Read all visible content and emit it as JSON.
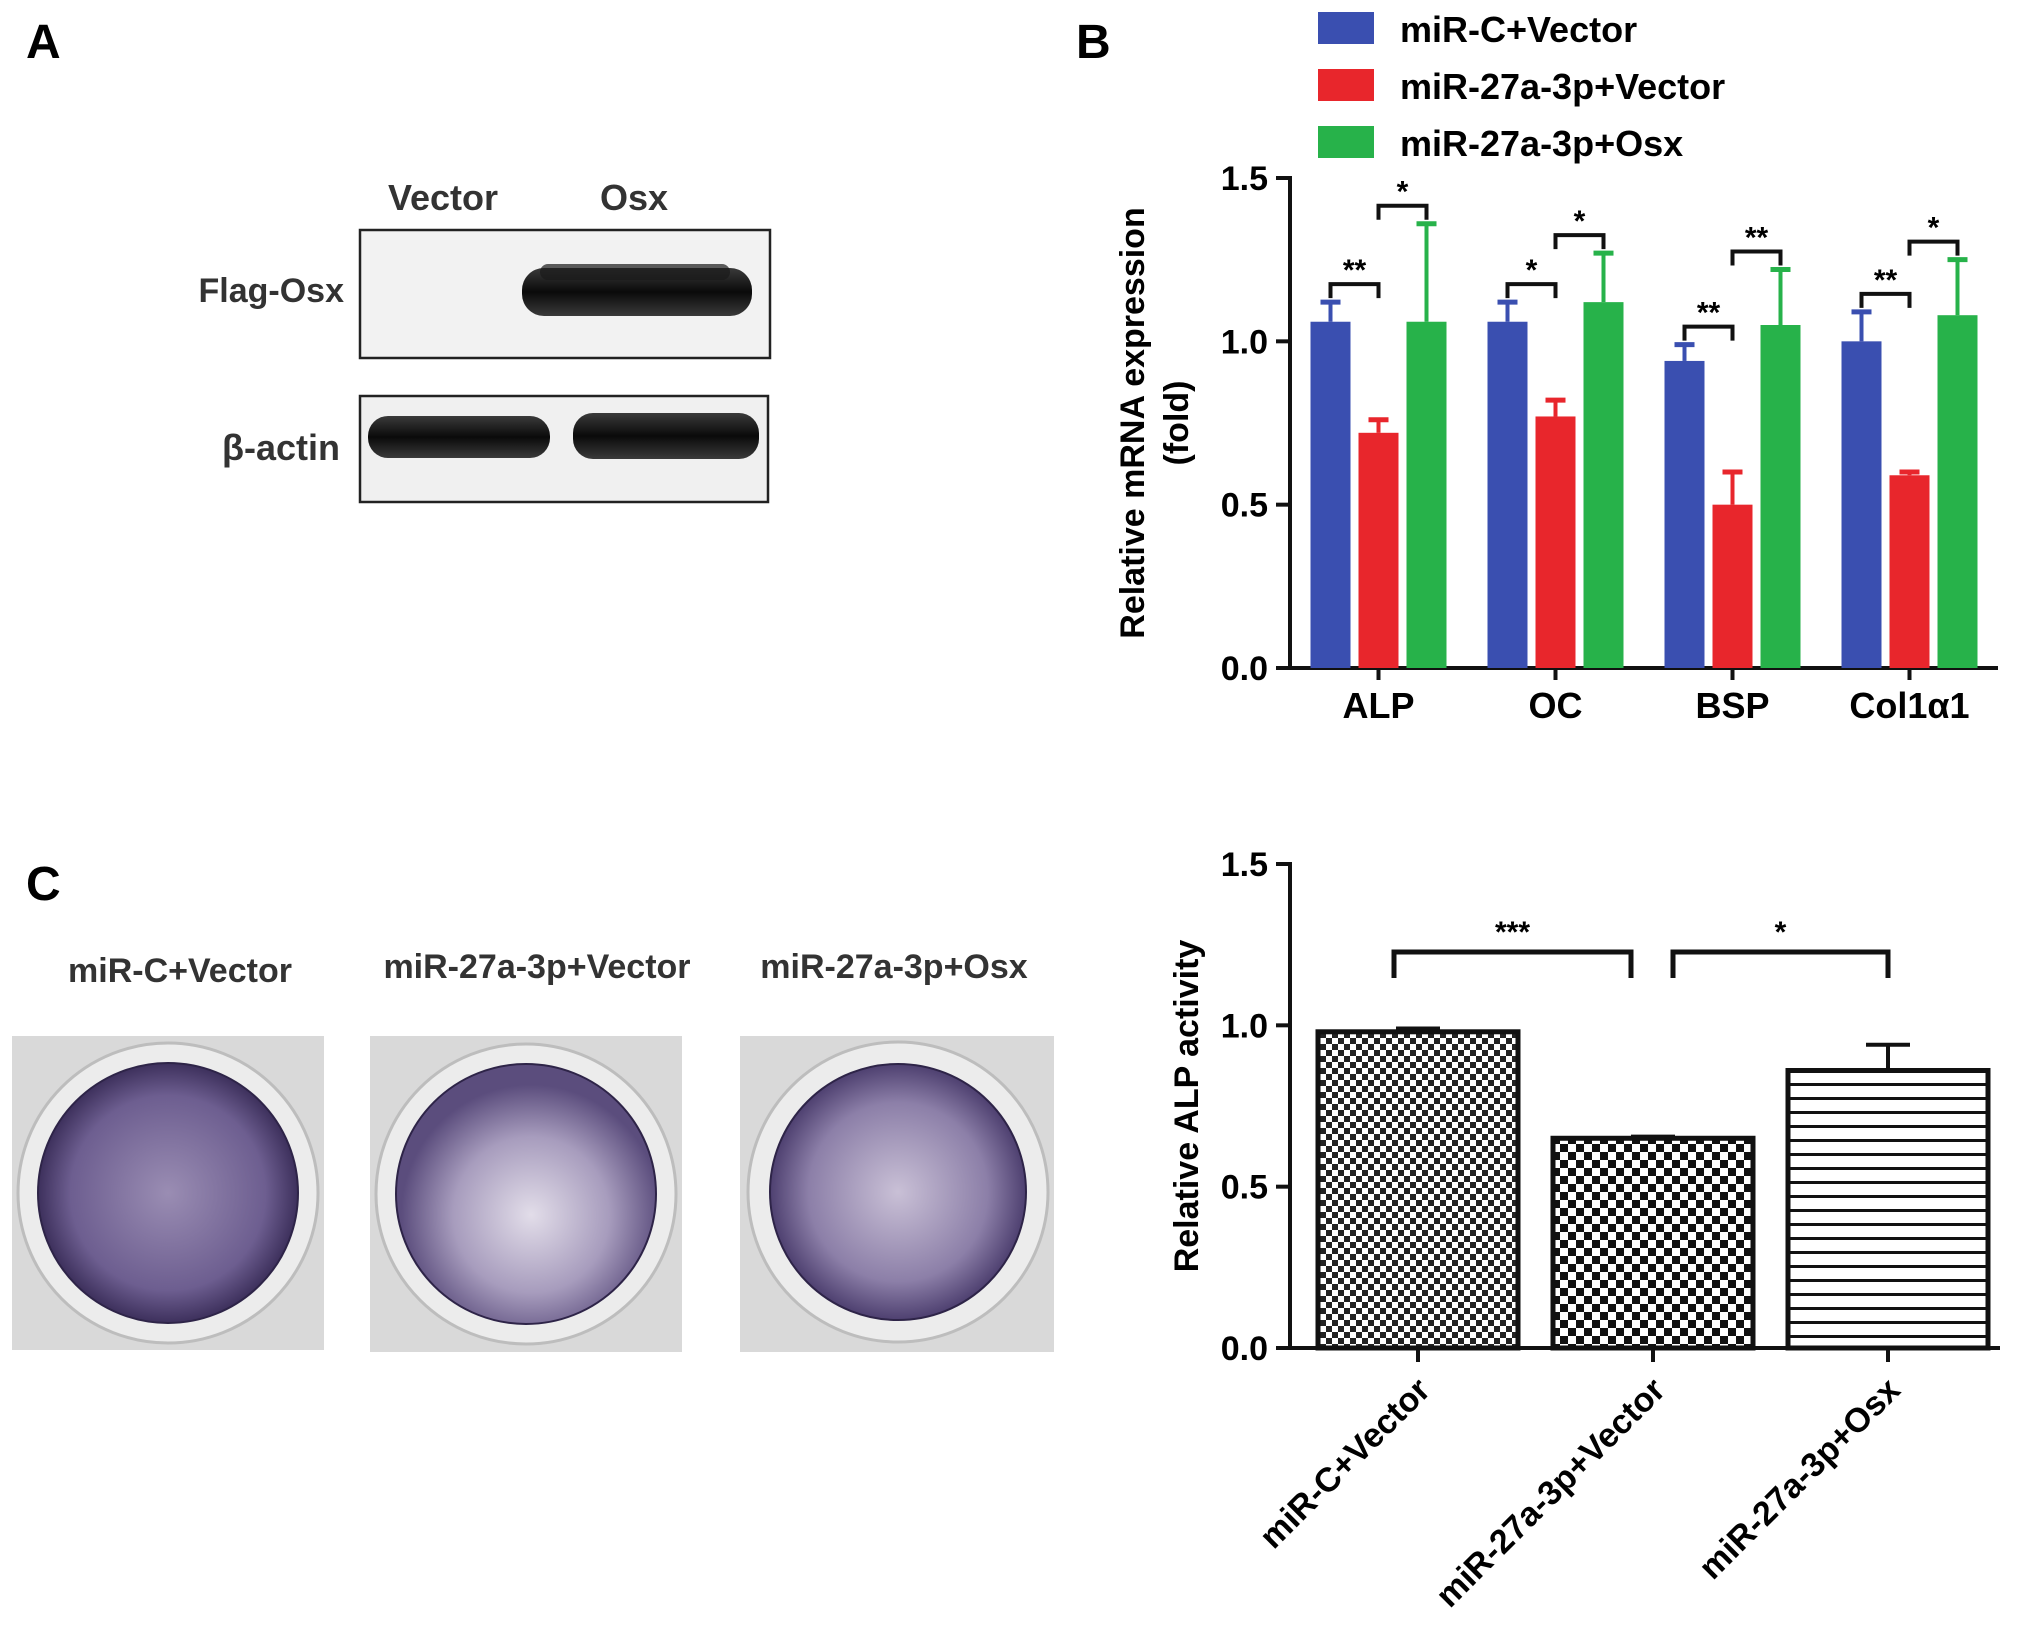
{
  "panels": {
    "a": {
      "label": "A",
      "lanes": [
        "Vector",
        "Osx"
      ],
      "rows": [
        "Flag-Osx",
        "β-actin"
      ]
    },
    "b": {
      "label": "B"
    },
    "c": {
      "label": "C",
      "wells": [
        "miR-C+Vector",
        "miR-27a-3p+Vector",
        "miR-27a-3p+Osx"
      ]
    }
  },
  "colors": {
    "blue": "#3a4fb0",
    "red": "#e8262c",
    "green": "#27b24a",
    "stain": "#6b5a8e"
  },
  "chart_data": [
    {
      "type": "bar",
      "panel": "B",
      "ylabel": "Relative mRNA expression\n(fold)",
      "xlabel": "",
      "categories": [
        "ALP",
        "OC",
        "BSP",
        "Col1α1"
      ],
      "ylim": [
        0,
        1.5
      ],
      "yticks": [
        "0.0",
        "0.5",
        "1.0",
        "1.5"
      ],
      "legend_position": "top",
      "series": [
        {
          "name": "miR-C+Vector",
          "color": "#3a4fb0",
          "values": [
            1.06,
            1.06,
            0.94,
            1.0
          ],
          "errors": [
            0.06,
            0.06,
            0.05,
            0.09
          ]
        },
        {
          "name": "miR-27a-3p+Vector",
          "color": "#e8262c",
          "values": [
            0.72,
            0.77,
            0.5,
            0.59
          ],
          "errors": [
            0.04,
            0.05,
            0.1,
            0.01
          ]
        },
        {
          "name": "miR-27a-3p+Osx",
          "color": "#27b24a",
          "values": [
            1.06,
            1.12,
            1.05,
            1.08
          ],
          "errors": [
            0.3,
            0.15,
            0.17,
            0.17
          ]
        }
      ],
      "significance": [
        {
          "category": 0,
          "pair": [
            0,
            1
          ],
          "label": "**"
        },
        {
          "category": 0,
          "pair": [
            1,
            2
          ],
          "label": "*"
        },
        {
          "category": 1,
          "pair": [
            0,
            1
          ],
          "label": "*"
        },
        {
          "category": 1,
          "pair": [
            1,
            2
          ],
          "label": "*"
        },
        {
          "category": 2,
          "pair": [
            0,
            1
          ],
          "label": "**"
        },
        {
          "category": 2,
          "pair": [
            1,
            2
          ],
          "label": "**"
        },
        {
          "category": 3,
          "pair": [
            0,
            1
          ],
          "label": "**"
        },
        {
          "category": 3,
          "pair": [
            1,
            2
          ],
          "label": "*"
        }
      ]
    },
    {
      "type": "bar",
      "panel": "C",
      "ylabel": "Relative ALP activity",
      "xlabel": "",
      "categories": [
        "miR-C+Vector",
        "miR-27a-3p+Vector",
        "miR-27a-3p+Osx"
      ],
      "values": [
        0.98,
        0.65,
        0.86
      ],
      "errors": [
        0.01,
        0.005,
        0.08
      ],
      "patterns": [
        "checker-fine",
        "checker-coarse",
        "horizontal-lines"
      ],
      "ylim": [
        0,
        1.5
      ],
      "yticks": [
        "0.0",
        "0.5",
        "1.0",
        "1.5"
      ],
      "significance": [
        {
          "pair": [
            0,
            1
          ],
          "label": "***"
        },
        {
          "pair": [
            1,
            2
          ],
          "label": "*"
        }
      ]
    }
  ]
}
